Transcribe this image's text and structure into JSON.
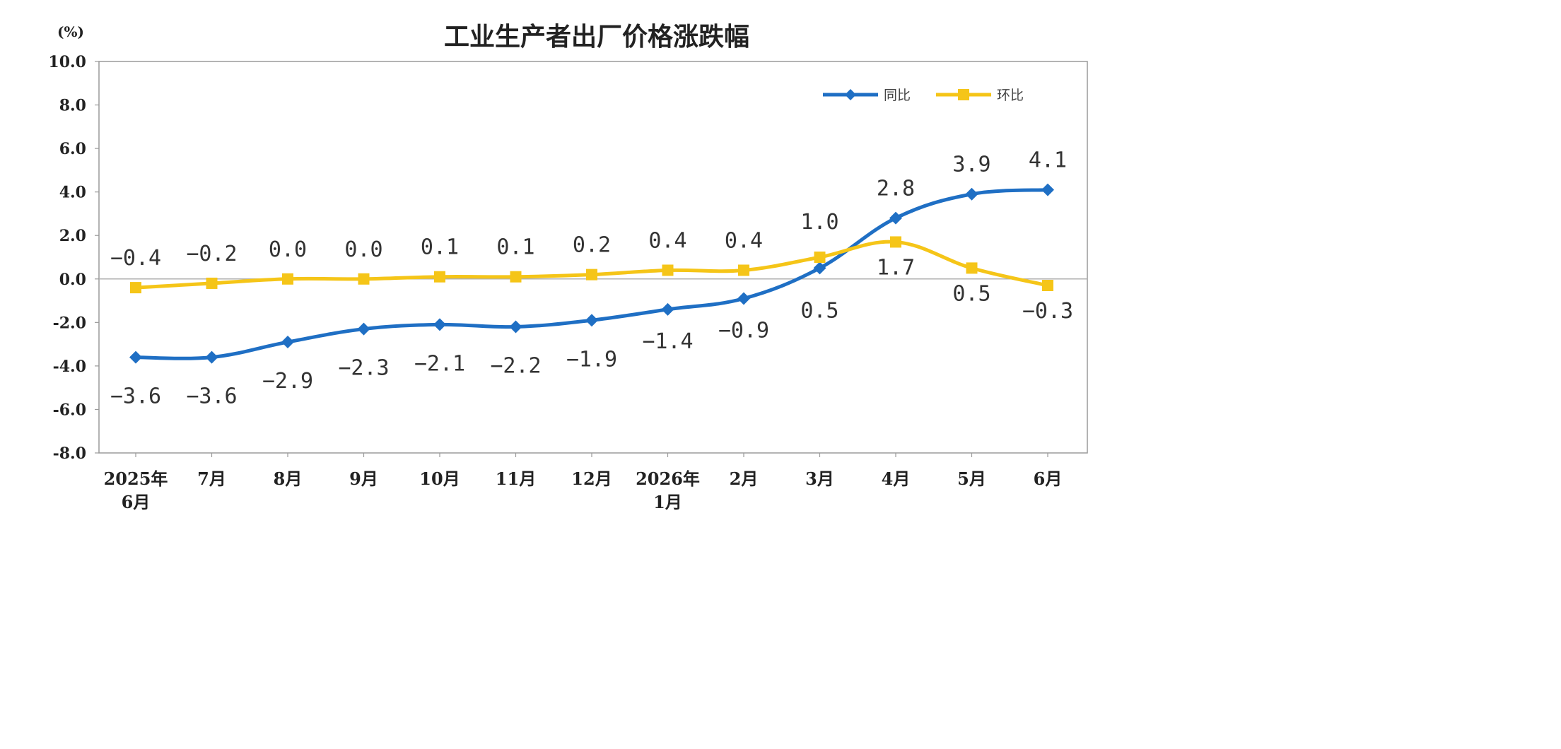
{
  "chart_data": {
    "type": "line",
    "title": "工业生产者出厂价格涨跌幅",
    "ylabel": "(%)",
    "xlabel": "",
    "ylim": [
      -8.0,
      10.0
    ],
    "yticks": [
      "10.0",
      "8.0",
      "6.0",
      "4.0",
      "2.0",
      "0.0",
      "-2.0",
      "-4.0",
      "-6.0",
      "-8.0"
    ],
    "categories": [
      [
        "2025年",
        "6月"
      ],
      [
        "7月"
      ],
      [
        "8月"
      ],
      [
        "9月"
      ],
      [
        "10月"
      ],
      [
        "11月"
      ],
      [
        "12月"
      ],
      [
        "2026年",
        "1月"
      ],
      [
        "2月"
      ],
      [
        "3月"
      ],
      [
        "4月"
      ],
      [
        "5月"
      ],
      [
        "6月"
      ]
    ],
    "grid": false,
    "legend_position": "top-right",
    "series": [
      {
        "name": "同比",
        "color": "#1f6fc4",
        "marker": "diamond",
        "values": [
          -3.6,
          -3.6,
          -2.9,
          -2.3,
          -2.1,
          -2.2,
          -1.9,
          -1.4,
          -0.9,
          0.5,
          2.8,
          3.9,
          4.1
        ],
        "labels": [
          "−3.6",
          "−3.6",
          "−2.9",
          "−2.3",
          "−2.1",
          "−2.2",
          "−1.9",
          "−1.4",
          "−0.9",
          "0.5",
          "2.8",
          "3.9",
          "4.1"
        ]
      },
      {
        "name": "环比",
        "color": "#f5c518",
        "marker": "square",
        "values": [
          -0.4,
          -0.2,
          0.0,
          0.0,
          0.1,
          0.1,
          0.2,
          0.4,
          0.4,
          1.0,
          1.7,
          0.5,
          -0.3
        ],
        "labels": [
          "−0.4",
          "−0.2",
          "0.0",
          "0.0",
          "0.1",
          "0.1",
          "0.2",
          "0.4",
          "0.4",
          "1.0",
          "1.7",
          "0.5",
          "−0.3"
        ]
      }
    ]
  }
}
